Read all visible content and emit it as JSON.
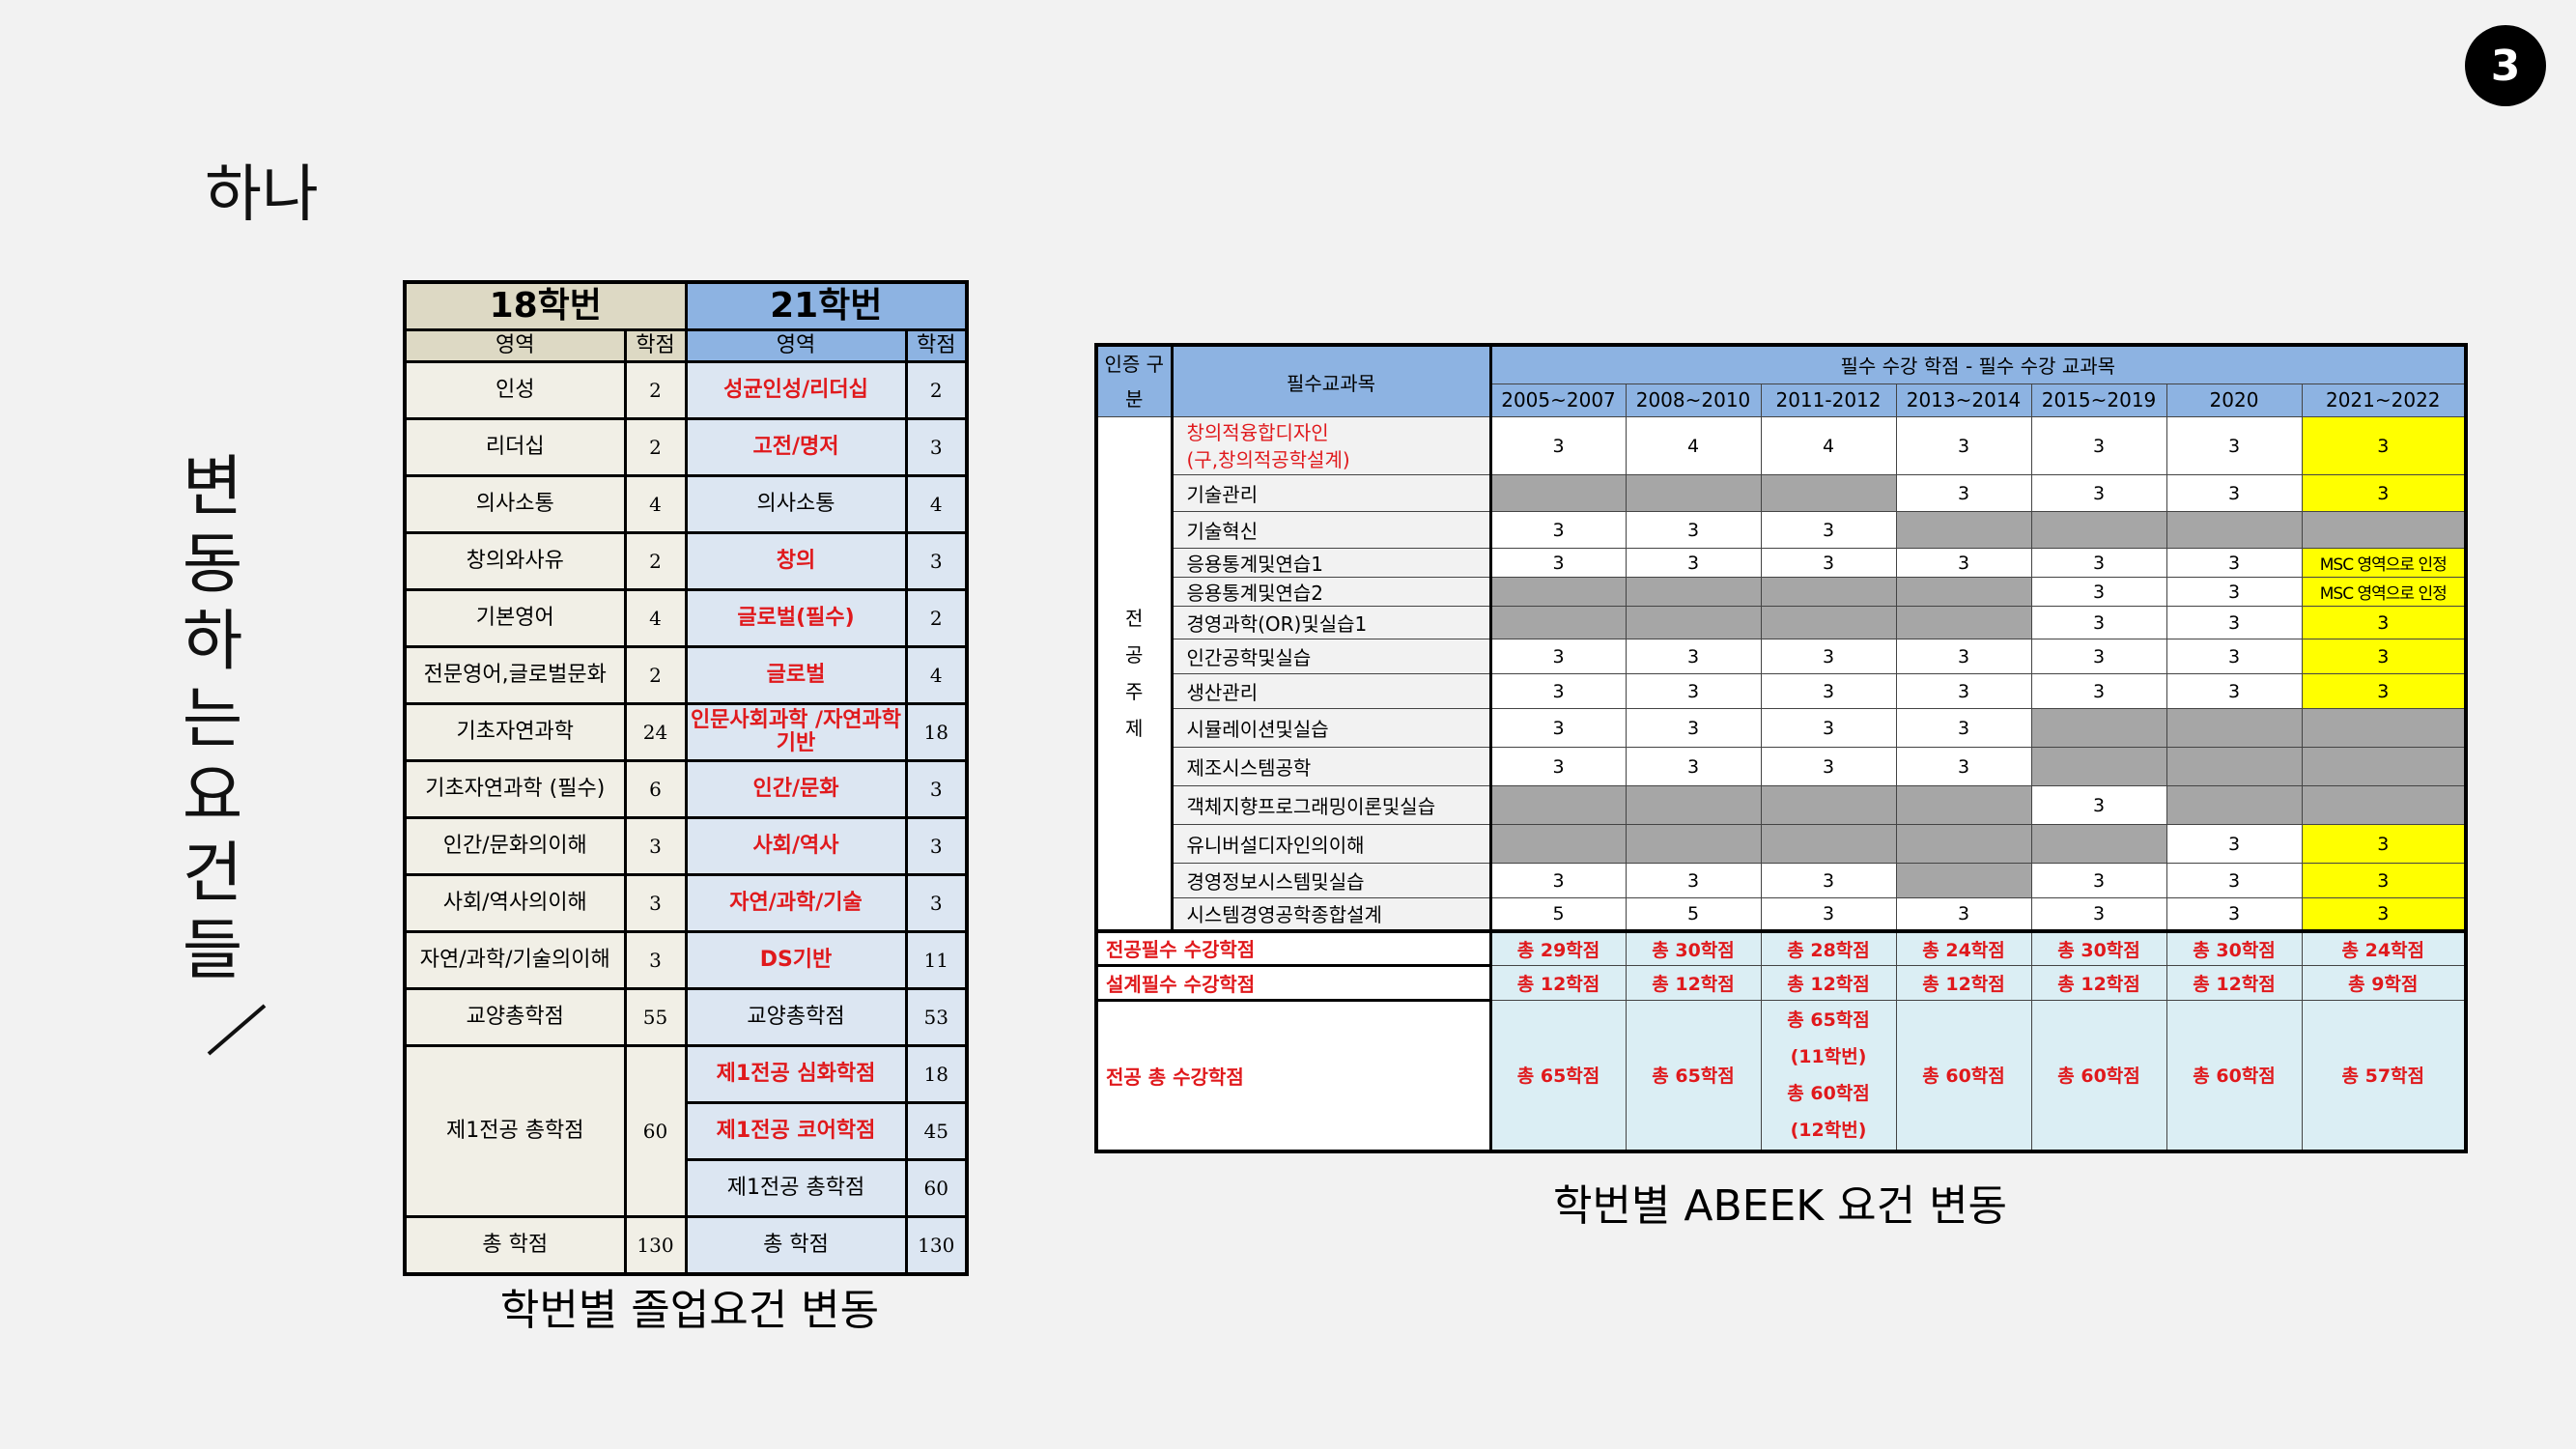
{
  "page_number": "3",
  "section_label": "하나",
  "vertical_title": "변동하는 요건들",
  "graduation": {
    "header_18": "18학번",
    "header_21": "21학번",
    "sub_area": "영역",
    "sub_credit": "학점",
    "rows": [
      {
        "a18": "인성",
        "c18": "2",
        "a21": "성균인성/리더십",
        "c21": "2"
      },
      {
        "a18": "리더십",
        "c18": "2",
        "a21": "고전/명저",
        "c21": "3"
      },
      {
        "a18": "의사소통",
        "c18": "4",
        "a21": "의사소통",
        "c21": "4"
      },
      {
        "a18": "창의와사유",
        "c18": "2",
        "a21": "창의",
        "c21": "3"
      },
      {
        "a18": "기본영어",
        "c18": "4",
        "a21": "글로벌(필수)",
        "c21": "2"
      },
      {
        "a18": "전문영어,글로벌문화",
        "c18": "2",
        "a21": "글로벌",
        "c21": "4"
      },
      {
        "a18": "기초자연과학",
        "c18": "24",
        "a21": "인문사회과학 /자연과학기반",
        "c21": "18"
      },
      {
        "a18": "기초자연과학 (필수)",
        "c18": "6",
        "a21": "인간/문화",
        "c21": "3"
      },
      {
        "a18": "인간/문화의이해",
        "c18": "3",
        "a21": "사회/역사",
        "c21": "3"
      },
      {
        "a18": "사회/역사의이해",
        "c18": "3",
        "a21": "자연/과학/기술",
        "c21": "3"
      },
      {
        "a18": "자연/과학/기술의이해",
        "c18": "3",
        "a21": "DS기반",
        "c21": "11"
      },
      {
        "a18": "교양총학점",
        "c18": "55",
        "a21": "교양총학점",
        "c21": "53"
      }
    ],
    "major": {
      "a18": "제1전공 총학점",
      "c18": "60",
      "r21": [
        {
          "a21": "제1전공 심화학점",
          "c21": "18"
        },
        {
          "a21": "제1전공 코어학점",
          "c21": "45"
        },
        {
          "a21": "제1전공 총학점",
          "c21": "60"
        }
      ]
    },
    "total": {
      "a18": "총 학점",
      "c18": "130",
      "a21": "총 학점",
      "c21": "130"
    },
    "caption": "학번별 졸업요건 변동"
  },
  "abeek": {
    "cert_head": "인증 구분",
    "course_head": "필수교과목",
    "group_head": "필수 수강 학점 - 필수 수강 교과목",
    "years": [
      "2005~2007",
      "2008~2010",
      "2011-2012",
      "2013~2014",
      "2015~2019",
      "2020",
      "2021~2022"
    ],
    "category": "전공주제",
    "category_chars": [
      "전",
      "공",
      "주",
      "제"
    ],
    "rows": [
      {
        "name": "창의적융합디자인",
        "name2": "(구,창의적공학설계)",
        "red": true,
        "cells": [
          "3",
          "4",
          "4",
          "3",
          "3",
          "3",
          "3"
        ],
        "types": [
          "w",
          "w",
          "w",
          "w",
          "w",
          "w",
          "y"
        ]
      },
      {
        "name": "기술관리",
        "cells": [
          "",
          "",
          "",
          "3",
          "3",
          "3",
          "3"
        ],
        "types": [
          "g",
          "g",
          "g",
          "w",
          "w",
          "w",
          "y"
        ]
      },
      {
        "name": "기술혁신",
        "cells": [
          "3",
          "3",
          "3",
          "",
          "",
          "",
          ""
        ],
        "types": [
          "w",
          "w",
          "w",
          "g",
          "g",
          "g",
          "g"
        ]
      },
      {
        "name": "응용통계및연습1",
        "cells": [
          "3",
          "3",
          "3",
          "3",
          "3",
          "3",
          "MSC 영역으로 인정"
        ],
        "types": [
          "w",
          "w",
          "w",
          "w",
          "w",
          "w",
          "ys"
        ]
      },
      {
        "name": "응용통계및연습2",
        "cells": [
          "",
          "",
          "",
          "",
          "3",
          "3",
          "MSC 영역으로 인정"
        ],
        "types": [
          "g",
          "g",
          "g",
          "g",
          "w",
          "w",
          "ys"
        ]
      },
      {
        "name": "경영과학(OR)및실습1",
        "cells": [
          "",
          "",
          "",
          "",
          "3",
          "3",
          "3"
        ],
        "types": [
          "g",
          "g",
          "g",
          "g",
          "w",
          "w",
          "y"
        ]
      },
      {
        "name": "인간공학및실습",
        "cells": [
          "3",
          "3",
          "3",
          "3",
          "3",
          "3",
          "3"
        ],
        "types": [
          "w",
          "w",
          "w",
          "w",
          "w",
          "w",
          "y"
        ]
      },
      {
        "name": "생산관리",
        "cells": [
          "3",
          "3",
          "3",
          "3",
          "3",
          "3",
          "3"
        ],
        "types": [
          "w",
          "w",
          "w",
          "w",
          "w",
          "w",
          "y"
        ]
      },
      {
        "name": "시뮬레이션및실습",
        "cells": [
          "3",
          "3",
          "3",
          "3",
          "",
          "",
          ""
        ],
        "types": [
          "w",
          "w",
          "w",
          "w",
          "g",
          "g",
          "g"
        ]
      },
      {
        "name": "제조시스템공학",
        "cells": [
          "3",
          "3",
          "3",
          "3",
          "",
          "",
          ""
        ],
        "types": [
          "w",
          "w",
          "w",
          "w",
          "g",
          "g",
          "g"
        ]
      },
      {
        "name": "객체지향프로그래밍이론및실습",
        "cells": [
          "",
          "",
          "",
          "",
          "3",
          "",
          ""
        ],
        "types": [
          "g",
          "g",
          "g",
          "g",
          "w",
          "g",
          "g"
        ]
      },
      {
        "name": "유니버설디자인의이해",
        "cells": [
          "",
          "",
          "",
          "",
          "",
          "3",
          "3"
        ],
        "types": [
          "g",
          "g",
          "g",
          "g",
          "g",
          "w",
          "y"
        ]
      },
      {
        "name": "경영정보시스템및실습",
        "cells": [
          "3",
          "3",
          "3",
          "",
          "3",
          "3",
          "3"
        ],
        "types": [
          "w",
          "w",
          "w",
          "g",
          "w",
          "w",
          "y"
        ]
      },
      {
        "name": "시스템경영공학종합설계",
        "cells": [
          "5",
          "5",
          "3",
          "3",
          "3",
          "3",
          "3"
        ],
        "types": [
          "w",
          "w",
          "w",
          "w",
          "w",
          "w",
          "y"
        ]
      }
    ],
    "sum_required": {
      "label": "전공필수 수강학점",
      "cells": [
        "총 29학점",
        "총 30학점",
        "총 28학점",
        "총 24학점",
        "총 30학점",
        "총 30학점",
        "총 24학점"
      ]
    },
    "sum_design": {
      "label": "설계필수 수강학점",
      "cells": [
        "총 12학점",
        "총 12학점",
        "총 12학점",
        "총 12학점",
        "총 12학점",
        "총 12학점",
        "총 9학점"
      ]
    },
    "sum_total": {
      "label": "전공 총 수강학점",
      "cells": [
        "총 65학점",
        "총 65학점",
        "총 65학점",
        "총 60학점",
        "총 60학점",
        "총 60학점",
        "총 57학점"
      ],
      "c3_lines": [
        "총 65학점",
        "(11학번)",
        "총 60학점",
        "(12학번)"
      ]
    },
    "caption": "학번별 ABEEK 요건 변동"
  }
}
